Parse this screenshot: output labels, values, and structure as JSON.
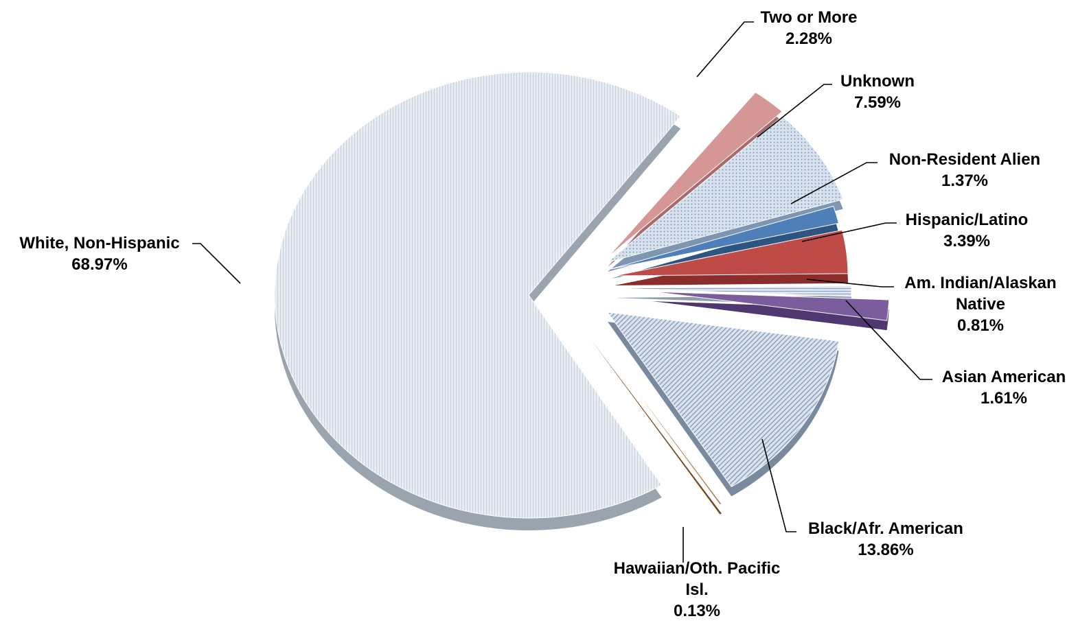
{
  "chart_data": {
    "type": "pie",
    "title": "",
    "style": "3d-exploded",
    "slices": [
      {
        "id": "white",
        "label_lines": [
          "White, Non-Hispanic"
        ],
        "value_text": "68.97%",
        "value": 68.97,
        "color": "#dfe6ef",
        "side_color": "#9aa4ae",
        "pattern": "vlines"
      },
      {
        "id": "two-or-more",
        "label_lines": [
          "Two or More"
        ],
        "value_text": "2.28%",
        "value": 2.28,
        "color": "#d59696",
        "side_color": "#a86a6a",
        "pattern": "none"
      },
      {
        "id": "unknown",
        "label_lines": [
          "Unknown"
        ],
        "value_text": "7.59%",
        "value": 7.59,
        "color": "#c6d4e6",
        "side_color": "#7f96b3",
        "pattern": "dots"
      },
      {
        "id": "non-resident-alien",
        "label_lines": [
          "Non-Resident Alien"
        ],
        "value_text": "1.37%",
        "value": 1.37,
        "color": "#4f7fb8",
        "side_color": "#2e5580",
        "pattern": "none"
      },
      {
        "id": "hispanic-latino",
        "label_lines": [
          "Hispanic/Latino"
        ],
        "value_text": "3.39%",
        "value": 3.39,
        "color": "#bf4b48",
        "side_color": "#8b2d2b",
        "pattern": "none"
      },
      {
        "id": "am-indian-alaskan",
        "label_lines": [
          "Am. Indian/Alaskan",
          "Native"
        ],
        "value_text": "0.81%",
        "value": 0.81,
        "color": "#c7d4e6",
        "side_color": "#8c9bb0",
        "pattern": "hlines"
      },
      {
        "id": "asian-american",
        "label_lines": [
          "Asian American"
        ],
        "value_text": "1.61%",
        "value": 1.61,
        "color": "#7b5d9d",
        "side_color": "#4f3870",
        "pattern": "none"
      },
      {
        "id": "black-afr-american",
        "label_lines": [
          "Black/Afr. American"
        ],
        "value_text": "13.86%",
        "value": 13.86,
        "color": "#cdd8e6",
        "side_color": "#7a8a9e",
        "pattern": "diag"
      },
      {
        "id": "hawaiian-pacific",
        "label_lines": [
          "Hawaiian/Oth. Pacific",
          "Isl."
        ],
        "value_text": "0.13%",
        "value": 0.13,
        "color": "#b8773a",
        "side_color": "#7a4a1e",
        "pattern": "none"
      }
    ]
  }
}
